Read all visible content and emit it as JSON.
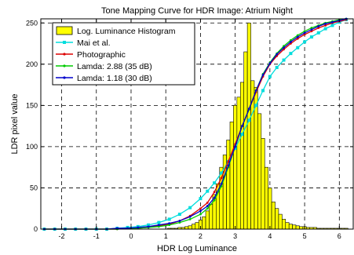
{
  "chart_data": {
    "type": "bar",
    "title": "Tone Mapping Curve for HDR Image: Atrium Night",
    "xlabel": "HDR Log Luminance",
    "ylabel": "LDR pixel value",
    "xlim": [
      -2.6,
      6.4
    ],
    "ylim": [
      0,
      255
    ],
    "xticks": [
      -2,
      -1,
      0,
      1,
      2,
      3,
      4,
      5,
      6
    ],
    "yticks": [
      0,
      50,
      100,
      150,
      200,
      250
    ],
    "grid": true,
    "legend_position": "top-left",
    "histogram": {
      "name": "Log. Luminance Histogram",
      "color": "#ffff00",
      "edge_color": "#000000",
      "bin_width": 0.1,
      "centers": [
        -2.5,
        -2.4,
        -2.3,
        -2.2,
        -2.1,
        -2.0,
        -1.9,
        -1.8,
        -1.7,
        -1.6,
        -1.5,
        -1.4,
        -1.3,
        -1.2,
        -1.1,
        -1.0,
        -0.9,
        -0.8,
        -0.7,
        -0.6,
        -0.5,
        -0.4,
        -0.3,
        -0.2,
        -0.1,
        0.0,
        0.1,
        0.2,
        0.3,
        0.4,
        0.5,
        0.6,
        0.7,
        0.8,
        0.9,
        1.0,
        1.1,
        1.2,
        1.3,
        1.4,
        1.5,
        1.6,
        1.7,
        1.8,
        1.9,
        2.0,
        2.1,
        2.2,
        2.3,
        2.4,
        2.5,
        2.6,
        2.7,
        2.8,
        2.9,
        3.0,
        3.1,
        3.2,
        3.3,
        3.4,
        3.5,
        3.6,
        3.7,
        3.8,
        3.9,
        4.0,
        4.1,
        4.2,
        4.3,
        4.4,
        4.5,
        4.6,
        4.7,
        4.8,
        4.9,
        5.0,
        5.1,
        5.2,
        5.3,
        5.4,
        5.5,
        5.6,
        5.7,
        5.8,
        5.9,
        6.0,
        6.1,
        6.2
      ],
      "values": [
        0,
        0,
        0,
        0,
        0,
        0,
        0,
        0,
        0,
        0,
        0,
        0,
        0,
        0,
        0,
        0,
        0,
        0,
        0,
        0,
        0,
        0,
        0,
        0,
        0,
        0,
        0,
        0,
        0,
        0,
        0,
        0,
        0,
        0,
        0,
        0,
        1,
        1,
        1,
        2,
        2,
        3,
        4,
        6,
        8,
        11,
        15,
        22,
        30,
        42,
        55,
        75,
        90,
        108,
        130,
        150,
        160,
        178,
        215,
        250,
        180,
        172,
        140,
        110,
        75,
        50,
        33,
        25,
        18,
        12,
        8,
        6,
        5,
        4,
        3,
        3,
        2,
        2,
        2,
        1,
        1,
        1,
        1,
        1,
        1,
        1,
        1,
        1
      ]
    },
    "series": [
      {
        "name": "Mai et al.",
        "color": "#00dddd",
        "marker": "square",
        "x": [
          -2.5,
          -2.2,
          -1.9,
          -1.6,
          -1.3,
          -1.0,
          -0.7,
          -0.4,
          -0.1,
          0.2,
          0.5,
          0.8,
          1.1,
          1.4,
          1.7,
          2.0,
          2.2,
          2.4,
          2.6,
          2.8,
          3.0,
          3.2,
          3.4,
          3.6,
          3.8,
          4.0,
          4.2,
          4.4,
          4.6,
          4.8,
          5.0,
          5.2,
          5.4,
          5.6,
          5.8,
          6.0,
          6.2
        ],
        "values": [
          0,
          0,
          0,
          0,
          0,
          0,
          0,
          1,
          2,
          3,
          5,
          8,
          12,
          18,
          26,
          37,
          46,
          56,
          68,
          82,
          98,
          115,
          132,
          150,
          168,
          185,
          196,
          205,
          213,
          220,
          227,
          233,
          238,
          243,
          247,
          251,
          254
        ]
      },
      {
        "name": "Photographic",
        "color": "#dd0000",
        "marker": "dot",
        "x": [
          -2.5,
          -2.2,
          -1.9,
          -1.6,
          -1.3,
          -1.0,
          -0.7,
          -0.4,
          -0.1,
          0.2,
          0.5,
          0.8,
          1.1,
          1.4,
          1.7,
          2.0,
          2.2,
          2.4,
          2.6,
          2.8,
          3.0,
          3.2,
          3.4,
          3.6,
          3.8,
          4.0,
          4.2,
          4.4,
          4.6,
          4.8,
          5.0,
          5.2,
          5.4,
          5.6,
          5.8,
          6.0,
          6.2
        ],
        "values": [
          0,
          0,
          0,
          0,
          0,
          0,
          0,
          0,
          1,
          1,
          2,
          4,
          6,
          10,
          16,
          25,
          32,
          45,
          62,
          82,
          103,
          125,
          145,
          166,
          185,
          200,
          210,
          218,
          225,
          231,
          236,
          240,
          244,
          247,
          250,
          252,
          254
        ]
      },
      {
        "name": "Lamda: 2.88  (35 dB)",
        "color": "#00cc00",
        "marker": "dot",
        "x": [
          -2.5,
          -2.2,
          -1.9,
          -1.6,
          -1.3,
          -1.0,
          -0.7,
          -0.4,
          -0.1,
          0.2,
          0.5,
          0.8,
          1.1,
          1.4,
          1.7,
          2.0,
          2.2,
          2.4,
          2.6,
          2.8,
          3.0,
          3.2,
          3.4,
          3.6,
          3.8,
          4.0,
          4.2,
          4.4,
          4.6,
          4.8,
          5.0,
          5.2,
          5.4,
          5.6,
          5.8,
          6.0,
          6.2
        ],
        "values": [
          0,
          0,
          0,
          0,
          0,
          0,
          0,
          0,
          1,
          1,
          2,
          3,
          5,
          8,
          12,
          18,
          25,
          35,
          52,
          75,
          100,
          125,
          145,
          168,
          188,
          202,
          213,
          222,
          229,
          235,
          240,
          244,
          247,
          250,
          252,
          254,
          255
        ]
      },
      {
        "name": "Lamda: 1.18  (30 dB)",
        "color": "#0000cc",
        "marker": "dot",
        "x": [
          -2.5,
          -2.2,
          -1.9,
          -1.6,
          -1.3,
          -1.0,
          -0.7,
          -0.4,
          -0.1,
          0.2,
          0.5,
          0.8,
          1.1,
          1.4,
          1.7,
          2.0,
          2.2,
          2.4,
          2.6,
          2.8,
          3.0,
          3.2,
          3.4,
          3.6,
          3.8,
          4.0,
          4.2,
          4.4,
          4.6,
          4.8,
          5.0,
          5.2,
          5.4,
          5.6,
          5.8,
          6.0,
          6.2
        ],
        "values": [
          0,
          0,
          0,
          0,
          0,
          0,
          0,
          1,
          1,
          2,
          3,
          5,
          7,
          10,
          15,
          22,
          28,
          38,
          55,
          77,
          100,
          125,
          146,
          168,
          187,
          201,
          212,
          220,
          227,
          233,
          238,
          242,
          246,
          249,
          251,
          253,
          255
        ]
      }
    ]
  }
}
